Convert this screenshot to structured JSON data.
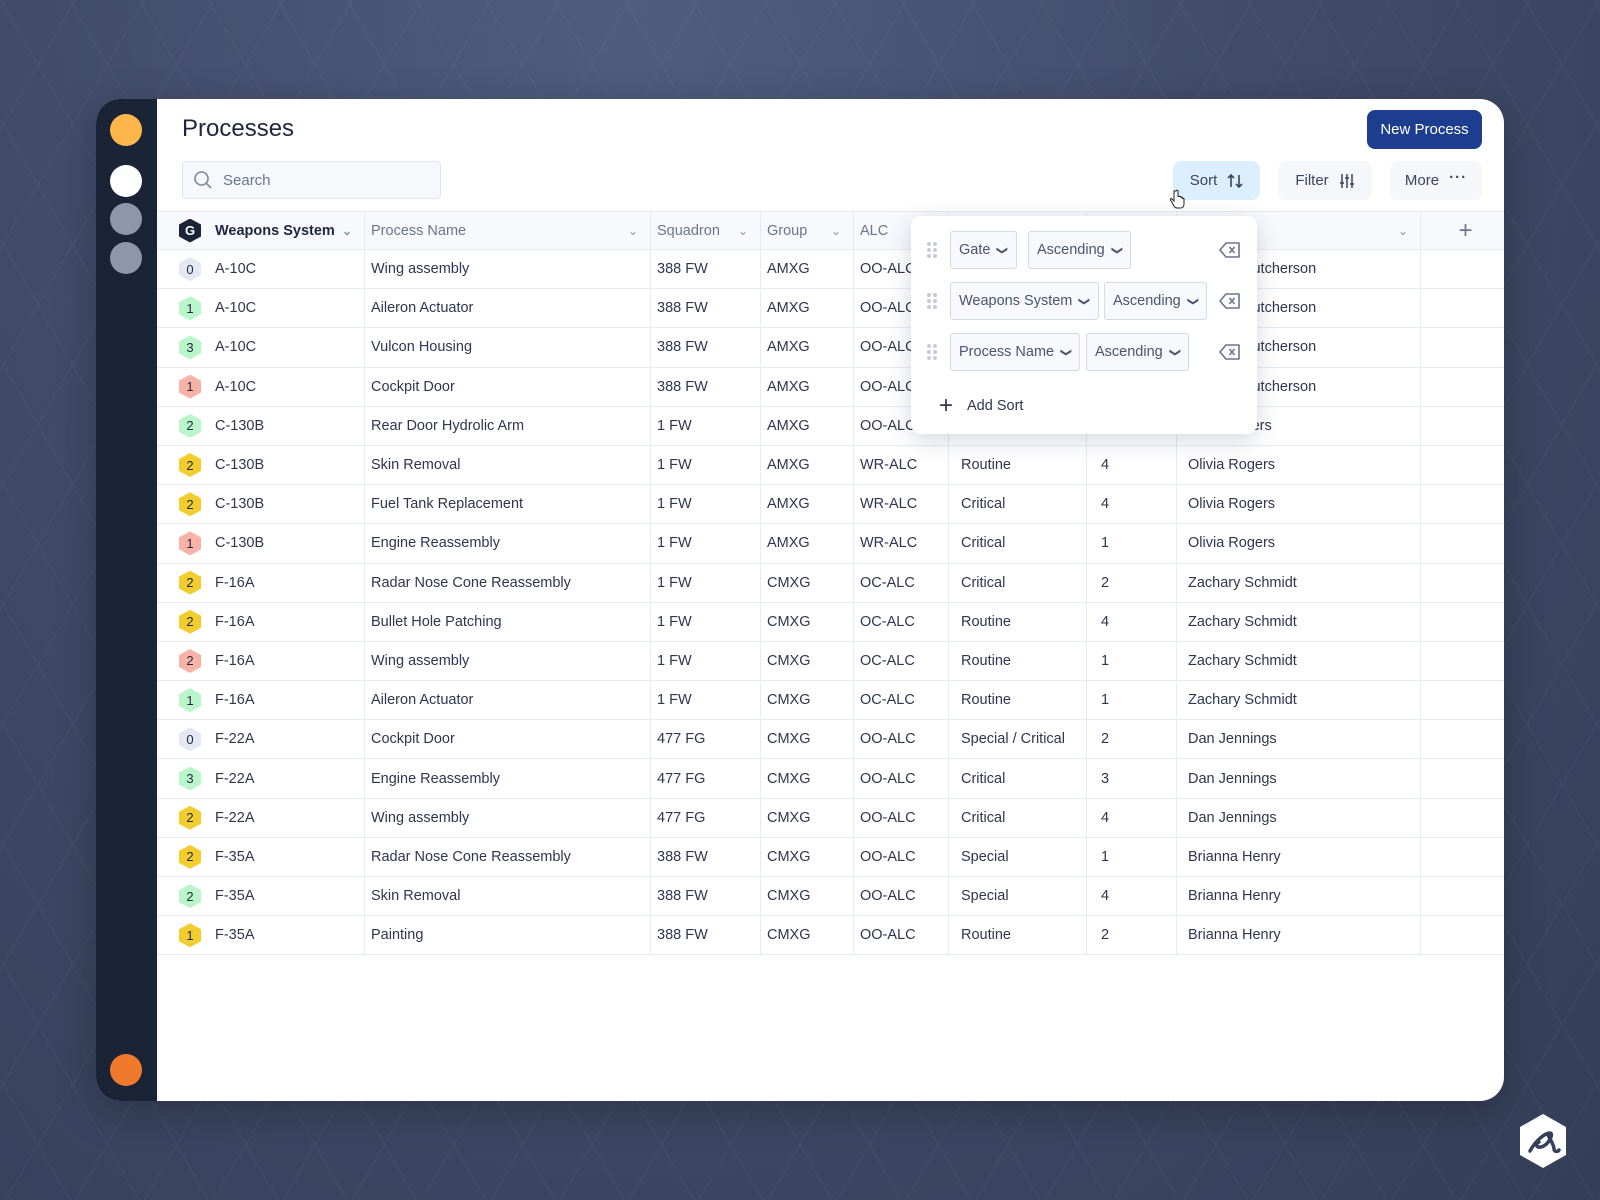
{
  "colors": {
    "accent": "#1d3e8f",
    "sidebar": "#1b2337",
    "sort_active": "#dcefff",
    "gate_grey": "#e4e8f0",
    "gate_green": "#b9f6c9",
    "gate_yellow": "#f3cd2e",
    "gate_red": "#f8b3a6"
  },
  "header": {
    "title": "Processes",
    "new_button": "New Process"
  },
  "search": {
    "placeholder": "Search",
    "value": ""
  },
  "toolbar": {
    "sort": "Sort",
    "filter": "Filter",
    "more": "More"
  },
  "columns": {
    "group_badge": "G",
    "weapons_system": "Weapons System",
    "process_name": "Process Name",
    "squadron": "Squadron",
    "group": "Group",
    "alc": "ALC"
  },
  "sort_popup": {
    "rules": [
      {
        "field": "Gate",
        "direction": "Ascending"
      },
      {
        "field": "Weapons System",
        "direction": "Ascending"
      },
      {
        "field": "Process Name",
        "direction": "Ascending"
      }
    ],
    "add_label": "Add Sort"
  },
  "rows": [
    {
      "gate": "0",
      "gate_color": "grey",
      "system": "A-10C",
      "process": "Wing assembly",
      "squadron": "388 FW",
      "group": "AMXG",
      "alc": "OO-ALC",
      "type": "",
      "count": "",
      "owner": "Hutcherson"
    },
    {
      "gate": "1",
      "gate_color": "green",
      "system": "A-10C",
      "process": "Aileron Actuator",
      "squadron": "388 FW",
      "group": "AMXG",
      "alc": "OO-ALC",
      "type": "",
      "count": "",
      "owner": "Hutcherson"
    },
    {
      "gate": "3",
      "gate_color": "green",
      "system": "A-10C",
      "process": "Vulcon Housing",
      "squadron": "388 FW",
      "group": "AMXG",
      "alc": "OO-ALC",
      "type": "",
      "count": "",
      "owner": "Hutcherson"
    },
    {
      "gate": "1",
      "gate_color": "red",
      "system": "A-10C",
      "process": "Cockpit Door",
      "squadron": "388 FW",
      "group": "AMXG",
      "alc": "OO-ALC",
      "type": "",
      "count": "",
      "owner": "Hutcherson"
    },
    {
      "gate": "2",
      "gate_color": "green",
      "system": "C-130B",
      "process": "Rear Door Hydrolic Arm",
      "squadron": "1 FW",
      "group": "AMXG",
      "alc": "OO-ALC",
      "type": "",
      "count": "",
      "owner": "Rogers"
    },
    {
      "gate": "2",
      "gate_color": "yellow",
      "system": "C-130B",
      "process": "Skin Removal",
      "squadron": "1 FW",
      "group": "AMXG",
      "alc": "WR-ALC",
      "type": "Routine",
      "count": "4",
      "owner": "Olivia Rogers"
    },
    {
      "gate": "2",
      "gate_color": "yellow",
      "system": "C-130B",
      "process": "Fuel Tank Replacement",
      "squadron": "1 FW",
      "group": "AMXG",
      "alc": "WR-ALC",
      "type": "Critical",
      "count": "4",
      "owner": "Olivia Rogers"
    },
    {
      "gate": "1",
      "gate_color": "red",
      "system": "C-130B",
      "process": "Engine Reassembly",
      "squadron": "1 FW",
      "group": "AMXG",
      "alc": "WR-ALC",
      "type": "Critical",
      "count": "1",
      "owner": "Olivia Rogers"
    },
    {
      "gate": "2",
      "gate_color": "yellow",
      "system": "F-16A",
      "process": "Radar Nose Cone Reassembly",
      "squadron": "1 FW",
      "group": "CMXG",
      "alc": "OC-ALC",
      "type": "Critical",
      "count": "2",
      "owner": "Zachary Schmidt"
    },
    {
      "gate": "2",
      "gate_color": "yellow",
      "system": "F-16A",
      "process": "Bullet Hole Patching",
      "squadron": "1 FW",
      "group": "CMXG",
      "alc": "OC-ALC",
      "type": "Routine",
      "count": "4",
      "owner": "Zachary Schmidt"
    },
    {
      "gate": "2",
      "gate_color": "red",
      "system": "F-16A",
      "process": "Wing assembly",
      "squadron": "1 FW",
      "group": "CMXG",
      "alc": "OC-ALC",
      "type": "Routine",
      "count": "1",
      "owner": "Zachary Schmidt"
    },
    {
      "gate": "1",
      "gate_color": "green",
      "system": "F-16A",
      "process": "Aileron Actuator",
      "squadron": "1 FW",
      "group": "CMXG",
      "alc": "OC-ALC",
      "type": "Routine",
      "count": "1",
      "owner": "Zachary Schmidt"
    },
    {
      "gate": "0",
      "gate_color": "grey",
      "system": "F-22A",
      "process": "Cockpit Door",
      "squadron": "477 FG",
      "group": "CMXG",
      "alc": "OO-ALC",
      "type": "Special / Critical",
      "count": "2",
      "owner": "Dan Jennings"
    },
    {
      "gate": "3",
      "gate_color": "green",
      "system": "F-22A",
      "process": "Engine Reassembly",
      "squadron": "477 FG",
      "group": "CMXG",
      "alc": "OO-ALC",
      "type": "Critical",
      "count": "3",
      "owner": "Dan Jennings"
    },
    {
      "gate": "2",
      "gate_color": "yellow",
      "system": "F-22A",
      "process": "Wing assembly",
      "squadron": "477 FG",
      "group": "CMXG",
      "alc": "OO-ALC",
      "type": "Critical",
      "count": "4",
      "owner": "Dan Jennings"
    },
    {
      "gate": "2",
      "gate_color": "yellow",
      "system": "F-35A",
      "process": "Radar Nose Cone Reassembly",
      "squadron": "388 FW",
      "group": "CMXG",
      "alc": "OO-ALC",
      "type": "Special",
      "count": "1",
      "owner": "Brianna Henry"
    },
    {
      "gate": "2",
      "gate_color": "green",
      "system": "F-35A",
      "process": "Skin Removal",
      "squadron": "388 FW",
      "group": "CMXG",
      "alc": "OO-ALC",
      "type": "Special",
      "count": "4",
      "owner": "Brianna Henry"
    },
    {
      "gate": "1",
      "gate_color": "yellow",
      "system": "F-35A",
      "process": "Painting",
      "squadron": "388 FW",
      "group": "CMXG",
      "alc": "OO-ALC",
      "type": "Routine",
      "count": "2",
      "owner": "Brianna Henry"
    }
  ]
}
